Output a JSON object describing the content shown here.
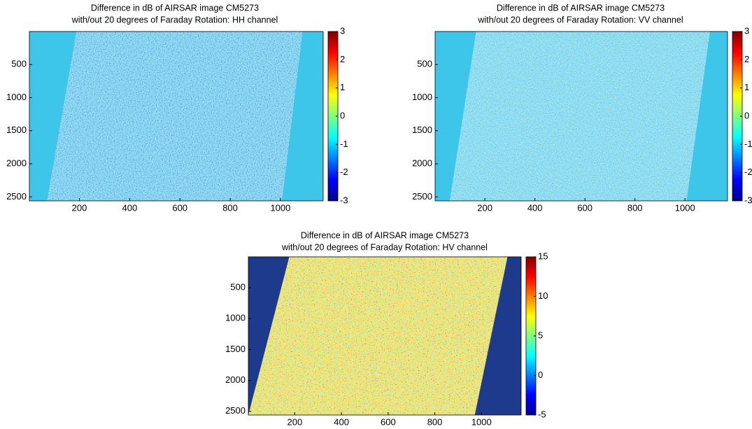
{
  "chart_data": [
    {
      "type": "heatmap",
      "title": [
        "Difference in dB of AIRSAR image CM5273",
        "with/out 20 degrees of Faraday Rotation:  HH channel"
      ],
      "xlim": [
        1,
        1170
      ],
      "ylim": [
        1,
        2560
      ],
      "y_inverted": true,
      "xticks": [
        200,
        400,
        600,
        800,
        1000
      ],
      "yticks": [
        500,
        1000,
        1500,
        2000,
        2500
      ],
      "clim": [
        -3,
        3
      ],
      "cticks": [
        -3,
        -2,
        -1,
        0,
        1,
        2,
        3
      ],
      "colormap": "jet"
    },
    {
      "type": "heatmap",
      "title": [
        "Difference in dB of AIRSAR image CM5273",
        "with/out 20 degrees of Faraday Rotation:  VV channel"
      ],
      "xlim": [
        1,
        1170
      ],
      "ylim": [
        1,
        2560
      ],
      "y_inverted": true,
      "xticks": [
        200,
        400,
        600,
        800,
        1000
      ],
      "yticks": [
        500,
        1000,
        1500,
        2000,
        2500
      ],
      "clim": [
        -3,
        3
      ],
      "cticks": [
        -3,
        -2,
        -1,
        0,
        1,
        2,
        3
      ],
      "colormap": "jet"
    },
    {
      "type": "heatmap",
      "title": [
        "Difference in dB of AIRSAR image CM5273",
        "with/out 20 degrees of Faraday Rotation:  HV channel"
      ],
      "xlim": [
        1,
        1170
      ],
      "ylim": [
        1,
        2560
      ],
      "y_inverted": true,
      "xticks": [
        200,
        400,
        600,
        800,
        1000
      ],
      "yticks": [
        500,
        1000,
        1500,
        2000,
        2500
      ],
      "clim": [
        -5,
        15
      ],
      "cticks": [
        -5,
        0,
        5,
        10,
        15
      ],
      "colormap": "jet"
    }
  ]
}
